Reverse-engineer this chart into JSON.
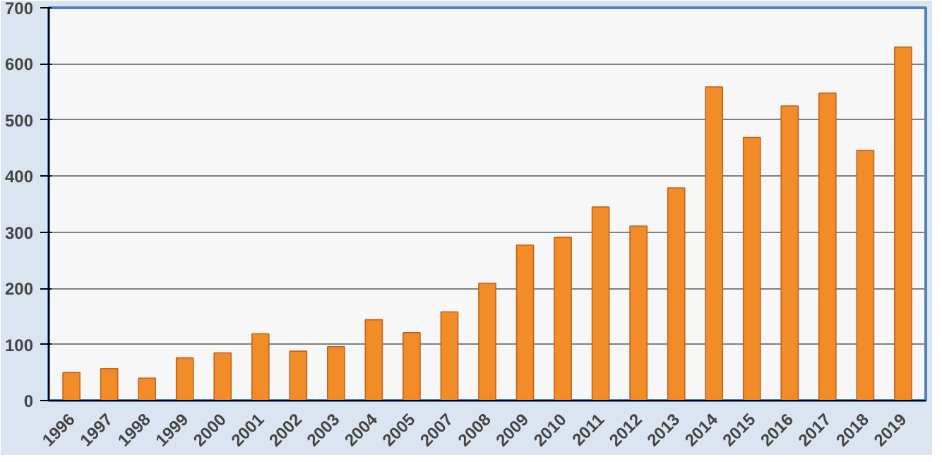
{
  "chart_data": {
    "type": "bar",
    "categories": [
      "1996",
      "1997",
      "1998",
      "1999",
      "2000",
      "2001",
      "2002",
      "2003",
      "2004",
      "2005",
      "2007",
      "2008",
      "2009",
      "2010",
      "2011",
      "2012",
      "2013",
      "2014",
      "2015",
      "2016",
      "2017",
      "2018",
      "2019"
    ],
    "values": [
      50,
      57,
      40,
      76,
      85,
      119,
      88,
      96,
      144,
      121,
      158,
      209,
      277,
      291,
      345,
      311,
      379,
      559,
      469,
      525,
      548,
      446,
      630
    ],
    "color": "#f28c28",
    "ylim": [
      0,
      700
    ],
    "yticks": [
      0,
      100,
      200,
      300,
      400,
      500,
      600,
      700
    ],
    "grid": "y"
  }
}
